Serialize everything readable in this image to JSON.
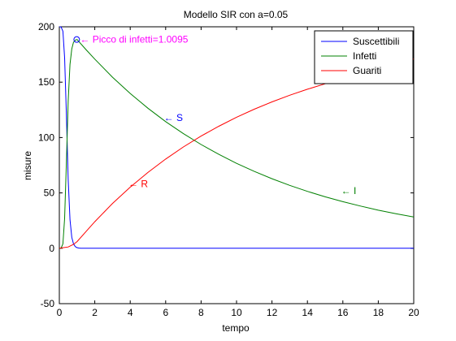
{
  "chart_data": {
    "type": "line",
    "title": "Modello SIR con a=0.05",
    "xlabel": "tempo",
    "ylabel": "misure",
    "xlim": [
      0,
      20
    ],
    "ylim": [
      -50,
      200
    ],
    "xticks": [
      0,
      2,
      4,
      6,
      8,
      10,
      12,
      14,
      16,
      18,
      20
    ],
    "yticks": [
      -50,
      0,
      50,
      100,
      150,
      200
    ],
    "xtick_labels": [
      "0",
      "2",
      "4",
      "6",
      "8",
      "10",
      "12",
      "14",
      "16",
      "18",
      "20"
    ],
    "ytick_labels": [
      "-50",
      "0",
      "50",
      "100",
      "150",
      "200"
    ],
    "grid": false,
    "legend_position": "top-right",
    "series": [
      {
        "name": "Suscettibili",
        "color": "#0000ff",
        "x": [
          0,
          0.1,
          0.2,
          0.3,
          0.4,
          0.5,
          0.6,
          0.7,
          0.8,
          0.9,
          1.0,
          1.1,
          1.2,
          1.5,
          2,
          3,
          4,
          5,
          6,
          7,
          8,
          9,
          10,
          11,
          12,
          13,
          14,
          15,
          16,
          17,
          18,
          19,
          20
        ],
        "y": [
          200,
          199.8,
          196,
          172,
          120,
          62,
          26,
          10,
          4,
          1.5,
          0.6,
          0.2,
          0.1,
          0.05,
          0.03,
          0.01,
          0,
          0,
          0,
          0,
          0,
          0,
          0,
          0,
          0,
          0,
          0,
          0,
          0,
          0,
          0,
          0,
          0
        ]
      },
      {
        "name": "Infetti",
        "color": "#008000",
        "x": [
          0,
          0.1,
          0.2,
          0.3,
          0.4,
          0.5,
          0.6,
          0.7,
          0.8,
          0.9,
          1.0,
          1.5,
          2,
          3,
          4,
          5,
          6,
          7,
          8,
          9,
          10,
          11,
          12,
          13,
          14,
          15,
          16,
          17,
          18,
          19,
          20
        ],
        "y": [
          0,
          0.2,
          4,
          27,
          78,
          133,
          166,
          180,
          186,
          188,
          188.5,
          179.5,
          170.8,
          154.5,
          139.8,
          126.5,
          114.4,
          103.5,
          93.7,
          84.8,
          76.7,
          69.4,
          62.8,
          56.8,
          51.4,
          46.5,
          42.1,
          38.1,
          34.4,
          31.2,
          28.2
        ]
      },
      {
        "name": "Guariti",
        "color": "#ff0000",
        "x": [
          0,
          0.5,
          0.8,
          1.0,
          1.5,
          2,
          3,
          4,
          5,
          6,
          7,
          8,
          9,
          10,
          11,
          12,
          13,
          14,
          15,
          16,
          17,
          18,
          19,
          20
        ],
        "y": [
          0,
          1.2,
          3.5,
          6,
          15,
          24,
          40.5,
          55.2,
          68.5,
          80.6,
          91.5,
          101.3,
          110.2,
          118.3,
          125.6,
          132.2,
          138.2,
          143.6,
          148.5,
          152.9,
          156.9,
          160.6,
          163.8,
          171
        ]
      }
    ],
    "peak_marker": {
      "x": 0.98,
      "y": 188.5,
      "label": "← Picco di infetti=1.0095",
      "color": "#ff00ff"
    },
    "annotations": [
      {
        "text": "← S",
        "x": 5.9,
        "y": 118,
        "color": "#0000ff"
      },
      {
        "text": "← R",
        "x": 3.9,
        "y": 58,
        "color": "#ff0000"
      },
      {
        "text": "← I",
        "x": 15.9,
        "y": 52,
        "color": "#008000"
      }
    ]
  }
}
